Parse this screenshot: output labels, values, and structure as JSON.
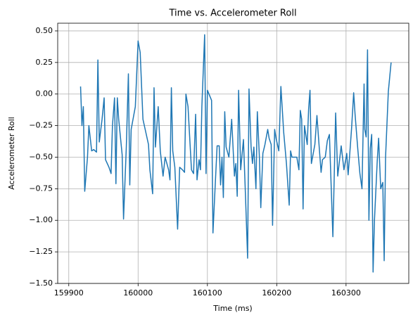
{
  "chart_data": {
    "type": "line",
    "title": "Time vs. Accelerometer Roll",
    "x_label": "Time (ms)",
    "y_label": "Accelerometer Roll",
    "color": "#1f77b4",
    "grid": true,
    "x": [
      159917,
      159919,
      159921,
      159923,
      159927,
      159929,
      159933,
      159936,
      159940,
      159942,
      159944,
      159948,
      159951,
      159953,
      159958,
      159961,
      159963,
      159966,
      159968,
      159970,
      159972,
      159977,
      159979,
      159983,
      159986,
      159988,
      159990,
      159996,
      160000,
      160003,
      160007,
      160015,
      160017,
      160021,
      160023,
      160025,
      160029,
      160032,
      160036,
      160039,
      160044,
      160046,
      160048,
      160050,
      160053,
      160057,
      160060,
      160064,
      160067,
      160069,
      160072,
      160075,
      160077,
      160080,
      160083,
      160085,
      160088,
      160090,
      160092,
      160096,
      160098,
      160100,
      160106,
      160108,
      160111,
      160114,
      160117,
      160119,
      160121,
      160123,
      160125,
      160127,
      160131,
      160135,
      160139,
      160141,
      160143,
      160145,
      160148,
      160152,
      160155,
      160158,
      160160,
      160163,
      160165,
      160167,
      160170,
      160172,
      160175,
      160177,
      160180,
      160183,
      160187,
      160189,
      160192,
      160194,
      160197,
      160199,
      160203,
      160206,
      160210,
      160214,
      160218,
      160220,
      160222,
      160225,
      160227,
      160229,
      160232,
      160234,
      160236,
      160238,
      160240,
      160244,
      160246,
      160248,
      160250,
      160255,
      160258,
      160261,
      160264,
      160266,
      160270,
      160273,
      160276,
      160281,
      160285,
      160288,
      160293,
      160297,
      160301,
      160303,
      160305,
      160308,
      160311,
      160313,
      160317,
      160320,
      160323,
      160326,
      160327,
      160329,
      160331,
      160333,
      160335,
      160337,
      160339,
      160341,
      160345,
      160347,
      160350,
      160353,
      160355,
      160357,
      160361,
      160365
    ],
    "values": [
      0.06,
      -0.25,
      -0.1,
      -0.77,
      -0.5,
      -0.25,
      -0.45,
      -0.44,
      -0.46,
      0.27,
      -0.38,
      -0.2,
      -0.03,
      -0.52,
      -0.58,
      -0.63,
      -0.25,
      -0.03,
      -0.71,
      -0.03,
      -0.2,
      -0.48,
      -0.99,
      -0.42,
      0.16,
      -0.72,
      -0.28,
      -0.1,
      0.42,
      0.33,
      -0.2,
      -0.4,
      -0.6,
      -0.79,
      0.05,
      -0.42,
      -0.1,
      -0.45,
      -0.65,
      -0.5,
      -0.6,
      -0.68,
      0.05,
      -0.45,
      -0.58,
      -1.07,
      -0.58,
      -0.6,
      -0.62,
      0.0,
      -0.1,
      -0.4,
      -0.6,
      -0.63,
      -0.16,
      -0.68,
      -0.52,
      -0.6,
      -0.1,
      0.47,
      -0.63,
      0.03,
      -0.05,
      -1.1,
      -0.75,
      -0.41,
      -0.41,
      -0.72,
      -0.5,
      -0.82,
      -0.14,
      -0.42,
      -0.5,
      -0.2,
      -0.65,
      -0.55,
      -0.81,
      0.03,
      -0.6,
      -0.36,
      -0.82,
      -1.3,
      0.04,
      -0.42,
      -0.55,
      -0.42,
      -0.75,
      -0.14,
      -0.5,
      -0.9,
      -0.47,
      -0.4,
      -0.28,
      -0.35,
      -0.4,
      -1.04,
      -0.28,
      -0.35,
      -0.45,
      0.06,
      -0.3,
      -0.55,
      -0.88,
      -0.45,
      -0.5,
      -0.5,
      -0.5,
      -0.5,
      -0.6,
      -0.13,
      -0.2,
      -0.91,
      -0.25,
      -0.4,
      -0.12,
      0.03,
      -0.55,
      -0.4,
      -0.17,
      -0.4,
      -0.62,
      -0.52,
      -0.5,
      -0.37,
      -0.32,
      -1.13,
      -0.15,
      -0.65,
      -0.41,
      -0.6,
      -0.47,
      -0.64,
      -0.5,
      -0.27,
      0.01,
      -0.16,
      -0.44,
      -0.63,
      -0.75,
      0.08,
      -0.28,
      -0.34,
      0.35,
      -1.0,
      -0.43,
      -0.32,
      -1.41,
      -1.0,
      -0.53,
      -0.35,
      -0.75,
      -0.7,
      -1.32,
      -0.5,
      0.02,
      0.25
    ],
    "xlim": [
      159884,
      160390.5
    ],
    "xticks": [
      159900,
      160000,
      160100,
      160200,
      160300
    ],
    "ylim": [
      -1.5,
      0.561
    ],
    "yticks": [
      {
        "value": -1.5,
        "label": "−1.50"
      },
      {
        "value": -1.25,
        "label": "−1.25"
      },
      {
        "value": -1.0,
        "label": "−1.00"
      },
      {
        "value": -0.75,
        "label": "−0.75"
      },
      {
        "value": -0.5,
        "label": "−0.50"
      },
      {
        "value": -0.25,
        "label": "−0.25"
      },
      {
        "value": 0,
        "label": "0.00"
      },
      {
        "value": 0.25,
        "label": "0.25"
      },
      {
        "value": 0.5,
        "label": "0.50"
      }
    ]
  }
}
